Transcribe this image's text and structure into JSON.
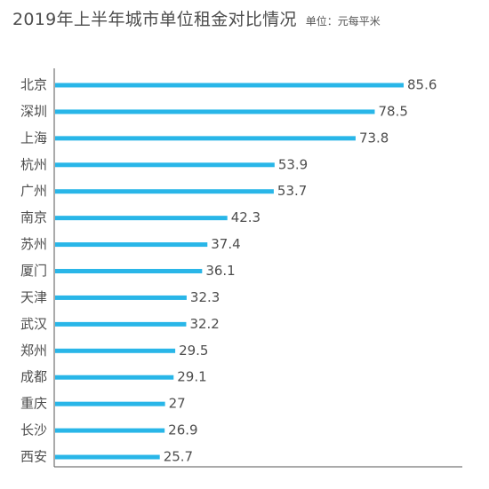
{
  "header": {
    "title": "2019年上半年城市单位租金对比情况",
    "unit": "单位：元每平米"
  },
  "colors": {
    "bar": "#29b6e8",
    "text": "#4d4d4d",
    "axis": "#555555"
  },
  "chart_data": {
    "type": "bar",
    "orientation": "horizontal",
    "title": "2019年上半年城市单位租金对比情况",
    "unit": "单位：元每平米",
    "categories": [
      "北京",
      "深圳",
      "上海",
      "杭州",
      "广州",
      "南京",
      "苏州",
      "厦门",
      "天津",
      "武汉",
      "郑州",
      "成都",
      "重庆",
      "长沙",
      "西安"
    ],
    "values": [
      85.6,
      78.5,
      73.8,
      53.9,
      53.7,
      42.3,
      37.4,
      36.1,
      32.3,
      32.2,
      29.5,
      29.1,
      27,
      26.9,
      25.7
    ],
    "data_labels": [
      "85.6",
      "78.5",
      "73.8",
      "53.9",
      "53.7",
      "42.3",
      "37.4",
      "36.1",
      "32.3",
      "32.2",
      "29.5",
      "29.1",
      "27",
      "26.9",
      "25.7"
    ],
    "grid": false,
    "legend": "none"
  }
}
